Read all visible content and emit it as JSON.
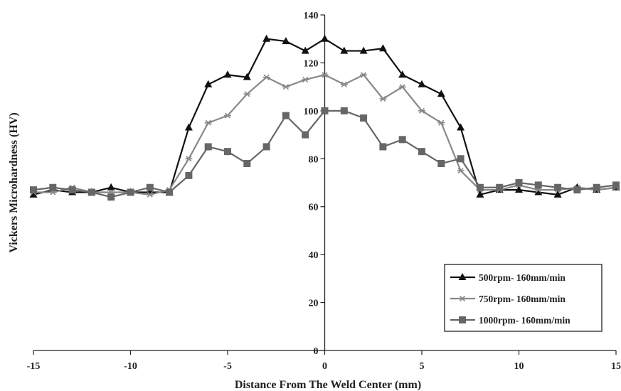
{
  "chart_data": {
    "type": "line",
    "title": "",
    "xlabel": "Distance From The Weld Center (mm)",
    "ylabel": "Vickers Microhardness (HV)",
    "xlim": [
      -15,
      15
    ],
    "ylim": [
      0,
      140
    ],
    "xticks": [
      -15,
      -10,
      -5,
      0,
      5,
      10,
      15
    ],
    "yticks": [
      0,
      20,
      40,
      60,
      80,
      100,
      120,
      140
    ],
    "grid": false,
    "legend_position": "bottom-right",
    "x": [
      -15,
      -14,
      -13,
      -12,
      -11,
      -10,
      -9,
      -8,
      -7,
      -6,
      -5,
      -4,
      -3,
      -2,
      -1,
      0,
      1,
      2,
      3,
      4,
      5,
      6,
      7,
      8,
      9,
      10,
      11,
      12,
      13,
      14,
      15
    ],
    "series": [
      {
        "name": "500rpm- 160mm/min",
        "color": "#111111",
        "marker": "triangle",
        "values": [
          65,
          67,
          66,
          66,
          68,
          66,
          66,
          66,
          93,
          111,
          115,
          114,
          130,
          129,
          125,
          130,
          125,
          125,
          126,
          115,
          111,
          107,
          93,
          65,
          67,
          67,
          66,
          65,
          68,
          67,
          68
        ]
      },
      {
        "name": "750rpm- 160mm/min",
        "color": "#888888",
        "marker": "star",
        "values": [
          66,
          66,
          68,
          66,
          66,
          66,
          65,
          67,
          80,
          95,
          98,
          107,
          114,
          110,
          113,
          115,
          111,
          115,
          105,
          110,
          100,
          95,
          75,
          67,
          67,
          69,
          67,
          67,
          68,
          67,
          68
        ]
      },
      {
        "name": "1000rpm- 160mm/min",
        "color": "#666666",
        "marker": "square",
        "values": [
          67,
          68,
          67,
          66,
          64,
          66,
          68,
          66,
          73,
          85,
          83,
          78,
          85,
          98,
          90,
          100,
          100,
          97,
          85,
          88,
          83,
          78,
          80,
          68,
          68,
          70,
          69,
          68,
          67,
          68,
          69
        ]
      }
    ]
  }
}
